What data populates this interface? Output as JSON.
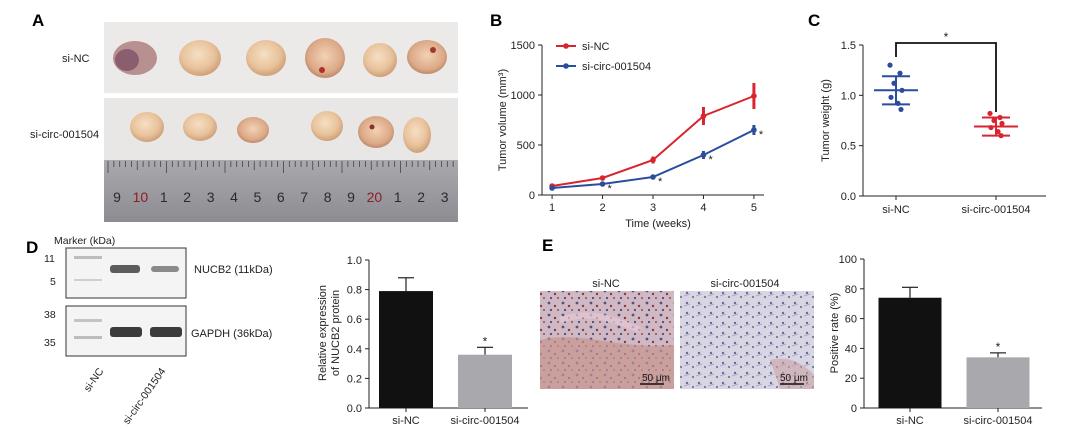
{
  "panel_a": {
    "letter": "A",
    "row_labels": [
      "si-NC",
      "si-circ-001504"
    ],
    "ruler_labels": [
      "9",
      "10",
      "1",
      "2",
      "3",
      "4",
      "5",
      "6",
      "7",
      "8",
      "9",
      "20",
      "1",
      "2",
      "3"
    ]
  },
  "panel_d_blot": {
    "letter": "D",
    "marker_title": "Marker (kDa)",
    "markers_top": [
      "11",
      "5"
    ],
    "markers_bottom": [
      "38",
      "35"
    ],
    "band_labels": [
      "NUCB2 (11kDa)",
      "GAPDH (36kDa)"
    ],
    "lane_labels": [
      "si-NC",
      "si-circ-001504"
    ]
  },
  "panel_e_ihc": {
    "letter": "E",
    "image_titles": [
      "si-NC",
      "si-circ-001504"
    ],
    "scale_label": "50 μm"
  },
  "colors": {
    "si_nc_line": "#d9252f",
    "si_circ_line": "#2a4d9c",
    "bar_nc": "#111111",
    "bar_circ": "#a8a8ad"
  },
  "chart_data": [
    {
      "id": "B",
      "type": "line",
      "letter": "B",
      "title": "",
      "xlabel": "Time (weeks)",
      "ylabel": "Tumor volume (mm³)",
      "x": [
        1,
        2,
        3,
        4,
        5
      ],
      "xlim": [
        0.8,
        5.2
      ],
      "ylim": [
        0,
        1500
      ],
      "xticks": [
        "1",
        "2",
        "3",
        "4",
        "5"
      ],
      "yticks": [
        "0",
        "500",
        "1000",
        "1500"
      ],
      "legend": "top-left",
      "series": [
        {
          "name": "si-NC",
          "color": "#d9252f",
          "values": [
            90,
            170,
            350,
            790,
            990
          ],
          "errors": [
            10,
            15,
            35,
            90,
            130
          ],
          "signif": [
            false,
            false,
            false,
            false,
            false
          ]
        },
        {
          "name": "si-circ-001504",
          "color": "#2a4d9c",
          "values": [
            70,
            110,
            180,
            400,
            650
          ],
          "errors": [
            8,
            10,
            15,
            40,
            50
          ],
          "signif": [
            false,
            true,
            true,
            true,
            true
          ]
        }
      ],
      "signif_label": "*"
    },
    {
      "id": "C",
      "type": "scatter",
      "letter": "C",
      "title": "",
      "xlabel": "",
      "ylabel": "Tumor weight (g)",
      "categories": [
        "si-NC",
        "si-circ-001504"
      ],
      "ylim": [
        0,
        1.5
      ],
      "yticks": [
        "0.0",
        "0.5",
        "1.0",
        "1.5"
      ],
      "groups": [
        {
          "name": "si-NC",
          "color": "#2a4d9c",
          "mean": 1.05,
          "sd": 0.14,
          "points": [
            1.3,
            1.22,
            1.12,
            1.05,
            0.98,
            0.92,
            0.86
          ]
        },
        {
          "name": "si-circ-001504",
          "color": "#d9252f",
          "mean": 0.69,
          "sd": 0.09,
          "points": [
            0.82,
            0.78,
            0.75,
            0.72,
            0.68,
            0.64,
            0.6
          ]
        }
      ],
      "signif_label": "*"
    },
    {
      "id": "D",
      "type": "bar",
      "title": "",
      "xlabel": "",
      "ylabel_lines": [
        "Relative expression",
        "of NUCB2 protein"
      ],
      "categories": [
        "si-NC",
        "si-circ-001504"
      ],
      "values": [
        0.79,
        0.36
      ],
      "errors": [
        0.09,
        0.05
      ],
      "ylim": [
        0,
        1.0
      ],
      "yticks": [
        "0.0",
        "0.2",
        "0.4",
        "0.6",
        "0.8",
        "1.0"
      ],
      "signif": [
        false,
        true
      ],
      "signif_label": "*"
    },
    {
      "id": "E",
      "type": "bar",
      "title": "",
      "xlabel": "",
      "ylabel": "Positive rate (%)",
      "categories": [
        "si-NC",
        "si-circ-001504"
      ],
      "values": [
        74,
        34
      ],
      "errors": [
        7,
        3
      ],
      "ylim": [
        0,
        100
      ],
      "yticks": [
        "0",
        "20",
        "40",
        "60",
        "80",
        "100"
      ],
      "signif": [
        false,
        true
      ],
      "signif_label": "*"
    }
  ]
}
